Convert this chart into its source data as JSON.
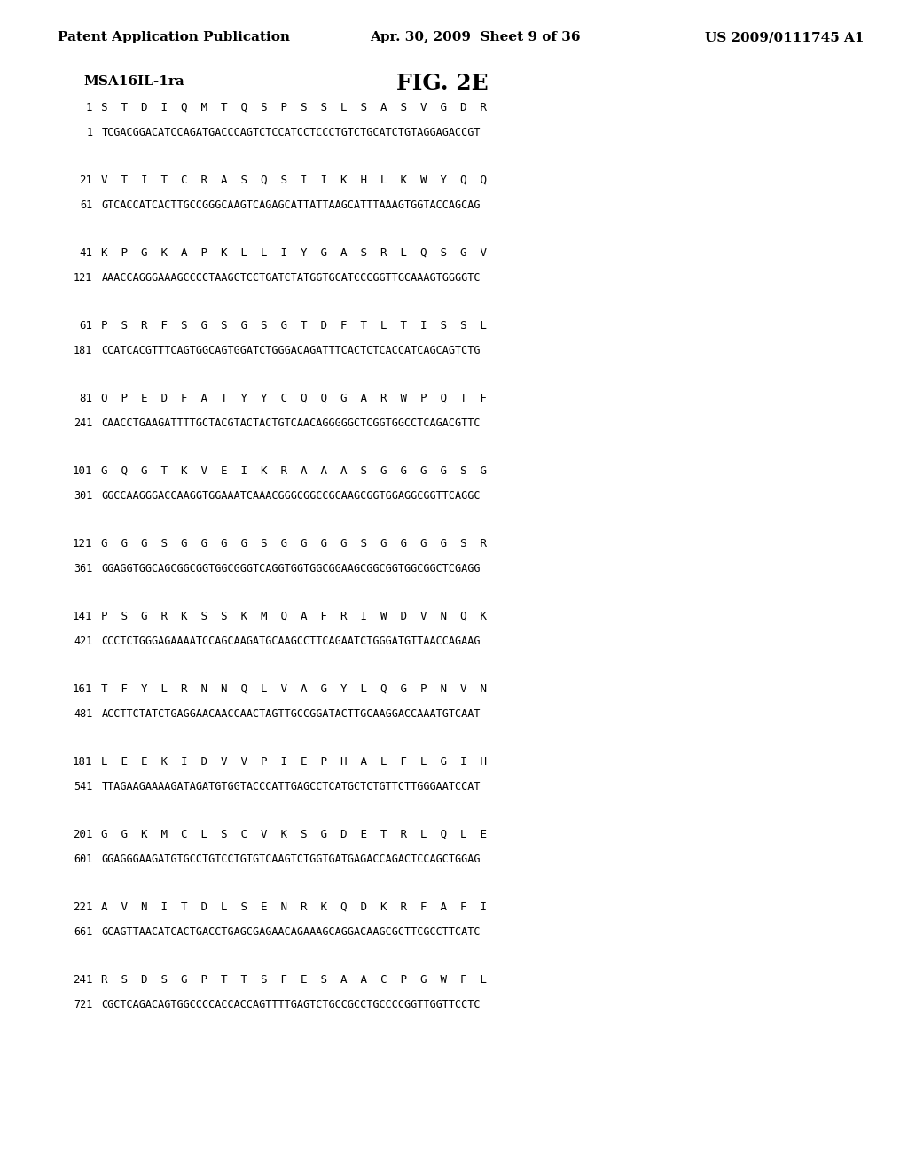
{
  "header_left": "Patent Application Publication",
  "header_mid": "Apr. 30, 2009  Sheet 9 of 36",
  "header_right": "US 2009/0111745 A1",
  "label_left": "MSA16IL-1ra",
  "fig_title": "FIG. 2E",
  "sequences": [
    {
      "aa_num": "1",
      "aa_seq": "S  T  D  I  Q  M  T  Q  S  P  S  S  L  S  A  S  V  G  D  R",
      "nt_num": "1",
      "nt_seq": "TCGACGGACATCCAGATGACCCAGTCTCCATCCTCCCTGTCTGCATCTGTAGGAGACCGT"
    },
    {
      "aa_num": "21",
      "aa_seq": "V  T  I  T  C  R  A  S  Q  S  I  I  K  H  L  K  W  Y  Q  Q",
      "nt_num": "61",
      "nt_seq": "GTCACCATCACTTGCCGGGCAAGTCAGAGCATTATTAAGCATTTAAAGTGGTACCAGCAG"
    },
    {
      "aa_num": "41",
      "aa_seq": "K  P  G  K  A  P  K  L  L  I  Y  G  A  S  R  L  Q  S  G  V",
      "nt_num": "121",
      "nt_seq": "AAACCAGGGAAAGCCCCTAAGCTCCTGATCTATGGTGCATCCCGGTTGCAAAGTGGGGTC"
    },
    {
      "aa_num": "61",
      "aa_seq": "P  S  R  F  S  G  S  G  S  G  T  D  F  T  L  T  I  S  S  L",
      "nt_num": "181",
      "nt_seq": "CCATCACGTTTCAGTGGCAGTGGATCTGGGACAGATTTCACTCTCACCATCAGCAGTCTG"
    },
    {
      "aa_num": "81",
      "aa_seq": "Q  P  E  D  F  A  T  Y  Y  C  Q  Q  G  A  R  W  P  Q  T  F",
      "nt_num": "241",
      "nt_seq": "CAACCTGAAGATTTTGCTACGTACTACTGTCAACAGGGGGCTCGGTGGCCTCAGACGTTC"
    },
    {
      "aa_num": "101",
      "aa_seq": "G  Q  G  T  K  V  E  I  K  R  A  A  A  S  G  G  G  G  S  G",
      "nt_num": "301",
      "nt_seq": "GGCCAAGGGACCAAGGTGGAAATCAAACGGGCGGCCGCAAGCGGTGGAGGCGGTTCAGGC"
    },
    {
      "aa_num": "121",
      "aa_seq": "G  G  G  S  G  G  G  G  S  G  G  G  G  S  G  G  G  G  S  R",
      "nt_num": "361",
      "nt_seq": "GGAGGTGGCAGCGGCGGTGGCGGGTCAGGTGGTGGCGGAAGCGGCGGTGGCGGCTCGAGG"
    },
    {
      "aa_num": "141",
      "aa_seq": "P  S  G  R  K  S  S  K  M  Q  A  F  R  I  W  D  V  N  Q  K",
      "nt_num": "421",
      "nt_seq": "CCCTCTGGGAGAAAATCCAGCAAGATGCAAGCCTTCAGAATCTGGGATGTTAACCAGAAG"
    },
    {
      "aa_num": "161",
      "aa_seq": "T  F  Y  L  R  N  N  Q  L  V  A  G  Y  L  Q  G  P  N  V  N",
      "nt_num": "481",
      "nt_seq": "ACCTTCTATCTGAGGAACAACCAACTAGTTGCCGGATACTTGCAAGGACCAAATGTCAAT"
    },
    {
      "aa_num": "181",
      "aa_seq": "L  E  E  K  I  D  V  V  P  I  E  P  H  A  L  F  L  G  I  H",
      "nt_num": "541",
      "nt_seq": "TTAGAAGAAAAGATAGATGTGGTACCCATTGAGCCTCATGCTCTGTTCTTGGGAATCCAT"
    },
    {
      "aa_num": "201",
      "aa_seq": "G  G  K  M  C  L  S  C  V  K  S  G  D  E  T  R  L  Q  L  E",
      "nt_num": "601",
      "nt_seq": "GGAGGGAAGATGTGCCTGTCCTGTGTCAAGTCTGGTGATGAGACCAGACTCCAGCTGGAG"
    },
    {
      "aa_num": "221",
      "aa_seq": "A  V  N  I  T  D  L  S  E  N  R  K  Q  D  K  R  F  A  F  I",
      "nt_num": "661",
      "nt_seq": "GCAGTTAACATCACTGACCTGAGCGAGAACAGAAAGCAGGACAAGCGCTTCGCCTTCATC"
    },
    {
      "aa_num": "241",
      "aa_seq": "R  S  D  S  G  P  T  T  S  F  E  S  A  A  C  P  G  W  F  L",
      "nt_num": "721",
      "nt_seq": "CGCTCAGACAGTGGCCCCACCACCAGTTTTGAGTCTGCCGCCTGCCCCGGTTGGTTCCTC"
    }
  ],
  "bg_color": "#ffffff",
  "text_color": "#000000",
  "header_fontsize": 11,
  "label_fontsize": 11,
  "fig_title_fontsize": 18,
  "num_fontsize": 9,
  "aa_fontsize": 9,
  "nt_fontsize": 8.5
}
